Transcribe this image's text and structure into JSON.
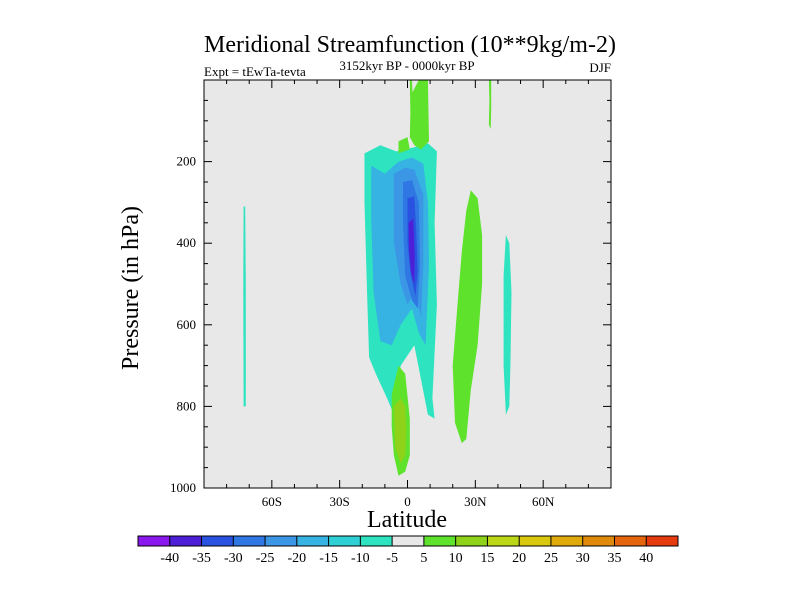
{
  "chart_data": {
    "type": "contour",
    "title": "Meridional Streamfunction (10**9kg/m-2)",
    "subtitle_left": "Expt = tEwTa-tevta",
    "subtitle_center": "3152kyr BP - 0000kyr BP",
    "subtitle_right": "DJF",
    "xlabel": "Latitude",
    "ylabel": "Pressure (in hPa)",
    "xlim": [
      -90,
      90
    ],
    "ylim": [
      1000,
      0
    ],
    "x_ticks": [
      {
        "value": -60,
        "label": "60S"
      },
      {
        "value": -30,
        "label": "30S"
      },
      {
        "value": 0,
        "label": "0"
      },
      {
        "value": 30,
        "label": "30N"
      },
      {
        "value": 60,
        "label": "60N"
      }
    ],
    "y_ticks": [
      {
        "value": 200,
        "label": "200"
      },
      {
        "value": 400,
        "label": "400"
      },
      {
        "value": 600,
        "label": "600"
      },
      {
        "value": 800,
        "label": "800"
      },
      {
        "value": 1000,
        "label": "1000"
      }
    ],
    "colorbar": {
      "labels": [
        "-40",
        "-35",
        "-30",
        "-25",
        "-20",
        "-15",
        "-10",
        "-5",
        "5",
        "10",
        "15",
        "20",
        "25",
        "30",
        "35",
        "40"
      ],
      "colors": [
        "#8a17ee",
        "#4d1fd6",
        "#2a52e0",
        "#2f78e3",
        "#3b97e6",
        "#36b2e3",
        "#2ed0d6",
        "#2de3c0",
        "#e8e8e8",
        "#5ee22c",
        "#8ed21a",
        "#bcd718",
        "#d9c80e",
        "#e0aa0a",
        "#e08a0b",
        "#e4650e",
        "#e63a0f"
      ]
    },
    "background_color": "#e8e8e8",
    "regions": [
      {
        "name": "contour-cyan-southern-thin",
        "level": "-5",
        "color": "#2de3c0",
        "points": [
          [
            -72.5,
            310
          ],
          [
            -71.8,
            310
          ],
          [
            -71.5,
            500
          ],
          [
            -71.5,
            800
          ],
          [
            -72.5,
            800
          ],
          [
            -72.6,
            500
          ]
        ]
      },
      {
        "name": "contour-cyan-main",
        "level": "-5",
        "color": "#2de3c0",
        "points": [
          [
            -19,
            180
          ],
          [
            -12,
            160
          ],
          [
            -5,
            175
          ],
          [
            3,
            165
          ],
          [
            9,
            155
          ],
          [
            13,
            175
          ],
          [
            12,
            350
          ],
          [
            13,
            550
          ],
          [
            11,
            780
          ],
          [
            12,
            830
          ],
          [
            9,
            820
          ],
          [
            3,
            650
          ],
          [
            -3,
            700
          ],
          [
            -6,
            820
          ],
          [
            -9,
            780
          ],
          [
            -14,
            720
          ],
          [
            -17,
            680
          ],
          [
            -18,
            500
          ],
          [
            -19,
            300
          ]
        ]
      },
      {
        "name": "contour-lightblue-main",
        "level": "-10",
        "color": "#36b2e3",
        "points": [
          [
            -16,
            210
          ],
          [
            -10,
            230
          ],
          [
            -4,
            200
          ],
          [
            2,
            190
          ],
          [
            7,
            205
          ],
          [
            9,
            300
          ],
          [
            9.5,
            450
          ],
          [
            8,
            650
          ],
          [
            5,
            620
          ],
          [
            2,
            560
          ],
          [
            -3,
            600
          ],
          [
            -7,
            650
          ],
          [
            -12,
            640
          ],
          [
            -15,
            520
          ],
          [
            -16,
            350
          ]
        ]
      },
      {
        "name": "contour-blue-main",
        "level": "-15",
        "color": "#3b97e6",
        "points": [
          [
            -6,
            230
          ],
          [
            -1,
            215
          ],
          [
            3,
            220
          ],
          [
            7,
            280
          ],
          [
            7,
            450
          ],
          [
            6,
            580
          ],
          [
            3,
            520
          ],
          [
            0,
            550
          ],
          [
            -3,
            500
          ],
          [
            -6,
            400
          ]
        ]
      },
      {
        "name": "contour-blue-core-1",
        "level": "-20",
        "color": "#2f78e3",
        "points": [
          [
            -2,
            250
          ],
          [
            2,
            245
          ],
          [
            5,
            300
          ],
          [
            5.5,
            450
          ],
          [
            4.5,
            560
          ],
          [
            2,
            540
          ],
          [
            -1,
            480
          ],
          [
            -2,
            350
          ]
        ]
      },
      {
        "name": "contour-blue-core-2",
        "level": "-25",
        "color": "#2a52e0",
        "points": [
          [
            0,
            290
          ],
          [
            3,
            285
          ],
          [
            4,
            380
          ],
          [
            4.5,
            470
          ],
          [
            3.5,
            530
          ],
          [
            1.5,
            480
          ],
          [
            0,
            400
          ]
        ]
      },
      {
        "name": "contour-blue-core-3",
        "level": "-30",
        "color": "#4d1fd6",
        "points": [
          [
            0.5,
            350
          ],
          [
            2.5,
            340
          ],
          [
            3.2,
            430
          ],
          [
            3,
            500
          ],
          [
            1.5,
            470
          ],
          [
            0.7,
            420
          ]
        ]
      },
      {
        "name": "contour-green-south-surface",
        "level": "5",
        "color": "#5ee22c",
        "points": [
          [
            -7,
            770
          ],
          [
            -4,
            700
          ],
          [
            -1,
            720
          ],
          [
            1,
            830
          ],
          [
            1,
            920
          ],
          [
            -1,
            960
          ],
          [
            -4,
            970
          ],
          [
            -6,
            920
          ],
          [
            -7,
            850
          ]
        ]
      },
      {
        "name": "contour-yellowgreen-south-surface",
        "level": "10",
        "color": "#8ed21a",
        "points": [
          [
            -6,
            800
          ],
          [
            -3,
            780
          ],
          [
            -1,
            800
          ],
          [
            -0.5,
            860
          ],
          [
            -1,
            920
          ],
          [
            -3,
            940
          ],
          [
            -5.5,
            900
          ]
        ]
      },
      {
        "name": "contour-green-north",
        "level": "5",
        "color": "#5ee22c",
        "points": [
          [
            26,
            320
          ],
          [
            28,
            270
          ],
          [
            31,
            290
          ],
          [
            33,
            380
          ],
          [
            33,
            500
          ],
          [
            31,
            650
          ],
          [
            28,
            760
          ],
          [
            26,
            880
          ],
          [
            24,
            890
          ],
          [
            21,
            840
          ],
          [
            20,
            700
          ],
          [
            22,
            560
          ],
          [
            24,
            420
          ]
        ]
      },
      {
        "name": "contour-cyan-north-midlat",
        "level": "-5",
        "color": "#2de3c0",
        "points": [
          [
            42.5,
            480
          ],
          [
            43.5,
            380
          ],
          [
            45,
            400
          ],
          [
            46,
            520
          ],
          [
            45.5,
            700
          ],
          [
            45,
            800
          ],
          [
            43.5,
            820
          ],
          [
            42.5,
            700
          ]
        ]
      },
      {
        "name": "contour-green-upper-equator",
        "level": "5",
        "color": "#5ee22c",
        "points": [
          [
            1,
            0
          ],
          [
            2,
            0
          ],
          [
            2.2,
            30
          ],
          [
            5,
            0
          ],
          [
            9,
            0
          ],
          [
            9.5,
            150
          ],
          [
            6,
            170
          ],
          [
            3,
            160
          ],
          [
            1,
            140
          ],
          [
            1.3,
            80
          ]
        ]
      },
      {
        "name": "contour-green-upper-equator-2",
        "level": "5",
        "color": "#5ee22c",
        "points": [
          [
            -4,
            150
          ],
          [
            0,
            140
          ],
          [
            1,
            170
          ],
          [
            -4,
            180
          ]
        ]
      },
      {
        "name": "contour-green-upper-north",
        "level": "5",
        "color": "#5ee22c",
        "points": [
          [
            36,
            0
          ],
          [
            37,
            0
          ],
          [
            37,
            70
          ],
          [
            36.8,
            120
          ],
          [
            36,
            110
          ],
          [
            36.2,
            50
          ]
        ]
      }
    ]
  }
}
